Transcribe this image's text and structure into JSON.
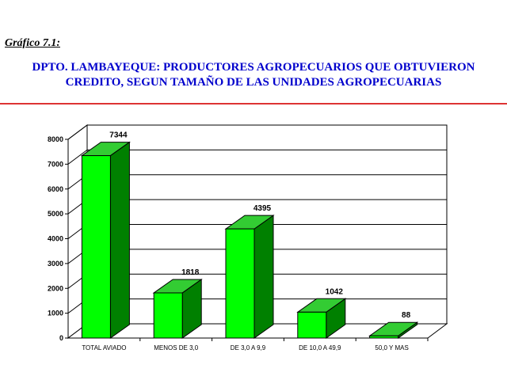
{
  "figure_label": "Gráfico 7.1:",
  "title_lines": [
    "DPTO. LAMBAYEQUE: PRODUCTORES AGROPECUARIOS QUE OBTUVIERON",
    "CREDITO, SEGUN TAMAÑO DE LAS UNIDADES AGROPECUARIAS"
  ],
  "colors": {
    "title": "#0000cc",
    "rule": "#dd3333",
    "bar_front": "#00ff00",
    "bar_side": "#008000",
    "bar_top": "#33cc33"
  },
  "chart_data": {
    "type": "bar",
    "style": "3d",
    "categories": [
      "TOTAL AVIADO",
      "MENOS DE 3,0",
      "DE 3,0 A 9,9",
      "DE 10,0 A 49,9",
      "50,0 Y MAS"
    ],
    "values": [
      7344,
      1818,
      4395,
      1042,
      88
    ],
    "data_labels": [
      "7344",
      "1818",
      "4395",
      "1042",
      "88"
    ],
    "ylim": [
      0,
      8000
    ],
    "yticks": [
      0,
      1000,
      2000,
      3000,
      4000,
      5000,
      6000,
      7000,
      8000
    ],
    "grid": true,
    "legend": "none"
  }
}
